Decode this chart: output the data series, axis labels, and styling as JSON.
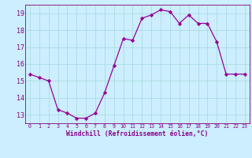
{
  "x": [
    0,
    1,
    2,
    3,
    4,
    5,
    6,
    7,
    8,
    9,
    10,
    11,
    12,
    13,
    14,
    15,
    16,
    17,
    18,
    19,
    20,
    21,
    22,
    23
  ],
  "y": [
    15.4,
    15.2,
    15.0,
    13.3,
    13.1,
    12.8,
    12.8,
    13.1,
    14.3,
    15.9,
    17.5,
    17.4,
    18.7,
    18.9,
    19.2,
    19.1,
    18.4,
    18.9,
    18.4,
    18.4,
    17.3,
    15.4,
    15.4,
    15.4
  ],
  "xlim": [
    -0.5,
    23.5
  ],
  "ylim": [
    12.5,
    19.5
  ],
  "yticks": [
    13,
    14,
    15,
    16,
    17,
    18,
    19
  ],
  "xticks": [
    0,
    1,
    2,
    3,
    4,
    5,
    6,
    7,
    8,
    9,
    10,
    11,
    12,
    13,
    14,
    15,
    16,
    17,
    18,
    19,
    20,
    21,
    22,
    23
  ],
  "xlabel": "Windchill (Refroidissement éolien,°C)",
  "line_color": "#990099",
  "marker": "D",
  "marker_size": 2.2,
  "bg_color": "#cceeff",
  "grid_color": "#aadddd",
  "tick_color": "#880088",
  "label_color": "#880088",
  "linewidth": 0.9,
  "xlabel_fontsize": 5.8,
  "ytick_fontsize": 6.0,
  "xtick_fontsize": 4.8
}
